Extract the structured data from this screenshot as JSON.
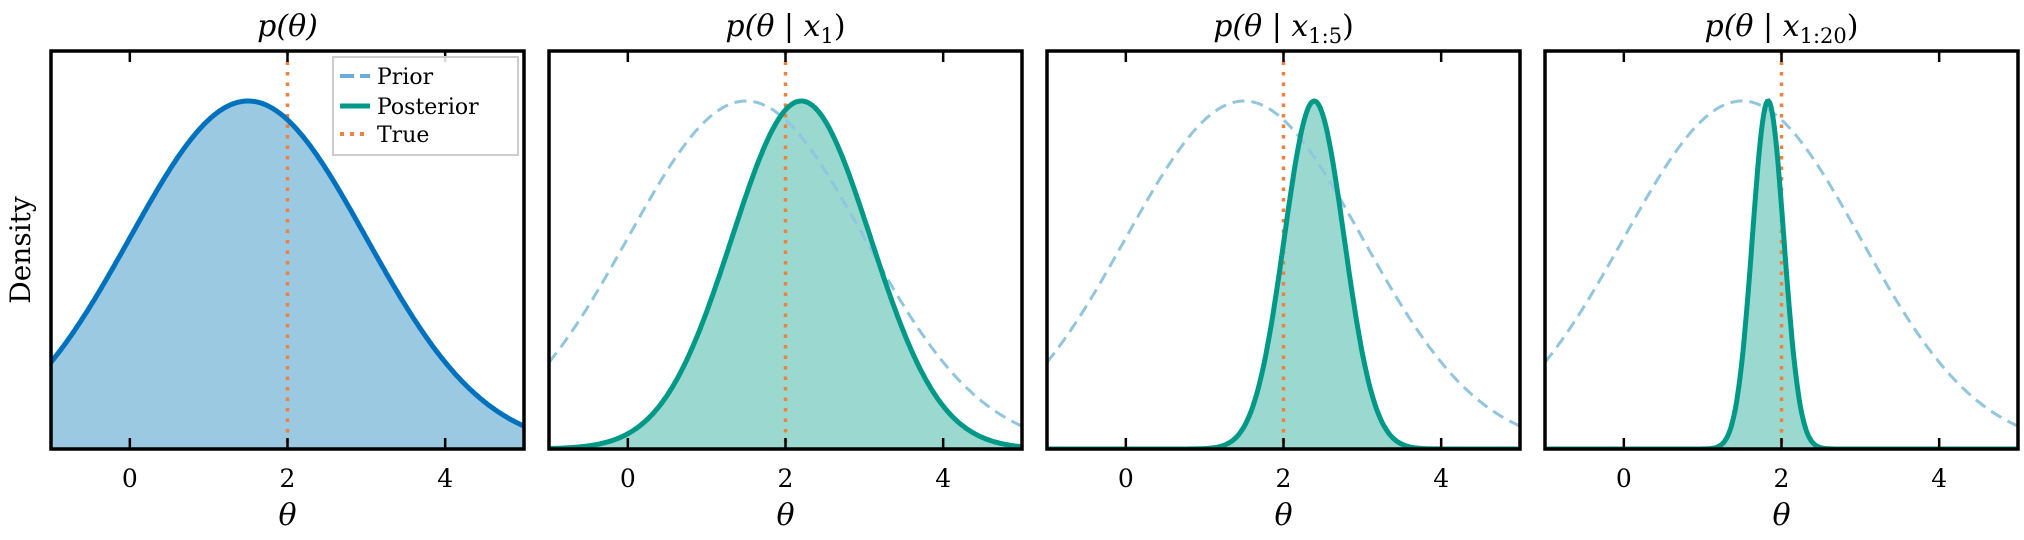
{
  "chart_data": [
    {
      "type": "area",
      "title": "p(θ)",
      "xlabel": "θ",
      "ylabel": "Density",
      "xlim": [
        -1,
        5
      ],
      "xticks": [
        0,
        2,
        4
      ],
      "yticks": [],
      "grid": false,
      "legend": {
        "position": "upper right",
        "entries": [
          "Prior",
          "Posterior",
          "True"
        ]
      },
      "series": [
        {
          "name": "Prior",
          "dist": "normal",
          "mean": 1.5,
          "std": 1.5,
          "style": "solid-filled",
          "color": "#0072bd",
          "fill": "#9bc9e2"
        }
      ],
      "true_value": 2
    },
    {
      "type": "area",
      "title": "p(θ | x₁)",
      "xlabel": "θ",
      "xlim": [
        -1,
        5
      ],
      "xticks": [
        0,
        2,
        4
      ],
      "series": [
        {
          "name": "Prior",
          "dist": "normal",
          "mean": 1.5,
          "std": 1.5,
          "style": "dashed",
          "color": "#92c5de"
        },
        {
          "name": "Posterior",
          "dist": "normal",
          "mean": 2.2,
          "std": 0.88,
          "style": "solid-filled",
          "color": "#009988",
          "fill": "#9bd8cf"
        }
      ],
      "true_value": 2
    },
    {
      "type": "area",
      "title": "p(θ | x₁:₅)",
      "xlabel": "θ",
      "xlim": [
        -1,
        5
      ],
      "xticks": [
        0,
        2,
        4
      ],
      "series": [
        {
          "name": "Prior",
          "dist": "normal",
          "mean": 1.5,
          "std": 1.5,
          "style": "dashed",
          "color": "#92c5de"
        },
        {
          "name": "Posterior",
          "dist": "normal",
          "mean": 2.39,
          "std": 0.38,
          "style": "solid-filled",
          "color": "#009988",
          "fill": "#9bd8cf"
        }
      ],
      "true_value": 2
    },
    {
      "type": "area",
      "title": "p(θ | x₁:₂₀)",
      "xlabel": "θ",
      "xlim": [
        -1,
        5
      ],
      "xticks": [
        0,
        2,
        4
      ],
      "series": [
        {
          "name": "Prior",
          "dist": "normal",
          "mean": 1.5,
          "std": 1.5,
          "style": "dashed",
          "color": "#92c5de"
        },
        {
          "name": "Posterior",
          "dist": "normal",
          "mean": 1.83,
          "std": 0.2,
          "style": "solid-filled",
          "color": "#009988",
          "fill": "#9bd8cf"
        }
      ],
      "true_value": 2
    }
  ],
  "panels": [
    {
      "title_main": "p(θ)",
      "title_sub": "",
      "title_close": ""
    },
    {
      "title_main": "p(θ | x",
      "title_sub": "1",
      "title_close": ")"
    },
    {
      "title_main": "p(θ | x",
      "title_sub": "1:5",
      "title_close": ")"
    },
    {
      "title_main": "p(θ | x",
      "title_sub": "1:20",
      "title_close": ")"
    }
  ],
  "axis": {
    "xlabel": "θ",
    "ylabel": "Density",
    "ticks": [
      "0",
      "2",
      "4"
    ]
  },
  "legend": {
    "prior": "Prior",
    "posterior": "Posterior",
    "true": "True"
  },
  "colors": {
    "prior_line_p1": "#0072bd",
    "prior_fill_p1": "#9bc9e2",
    "prior_dashed": "#92c5de",
    "posterior_line": "#009988",
    "posterior_fill": "#9bd8cf",
    "true_line": "#ee8040",
    "legend_prior": "#6aaed6",
    "legend_border": "#cccccc"
  }
}
